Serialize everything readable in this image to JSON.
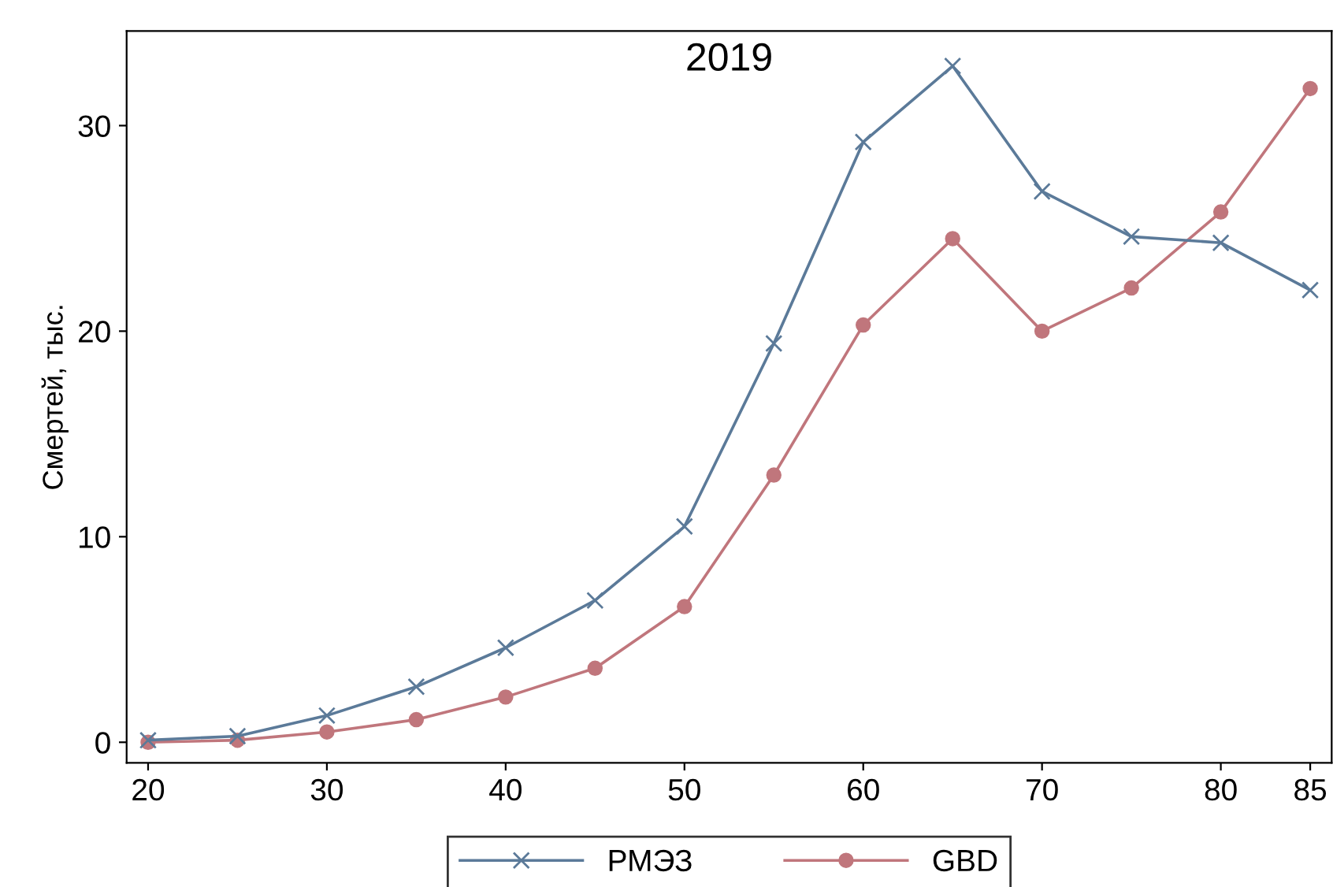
{
  "chart_data": {
    "type": "line",
    "title": "2019",
    "ylabel": "Смертей, тыс.",
    "x": [
      20,
      25,
      30,
      35,
      40,
      45,
      50,
      55,
      60,
      65,
      70,
      75,
      80,
      85
    ],
    "series": [
      {
        "name": "РМЭЗ",
        "color": "#5b7a99",
        "marker": "cross",
        "values": [
          0.1,
          0.3,
          1.3,
          2.7,
          4.6,
          6.9,
          10.5,
          19.4,
          29.2,
          32.9,
          26.8,
          24.6,
          24.3,
          22.0
        ]
      },
      {
        "name": "GBD",
        "color": "#c0767c",
        "marker": "circle",
        "values": [
          0.0,
          0.1,
          0.5,
          1.1,
          2.2,
          3.6,
          6.6,
          13.0,
          20.3,
          24.5,
          20.0,
          22.1,
          25.8,
          31.8
        ]
      }
    ],
    "xlim": [
      18.8,
      86.2
    ],
    "ylim": [
      -1,
      34.6
    ],
    "xticks": [
      20,
      30,
      40,
      50,
      60,
      70,
      80,
      85
    ],
    "yticks": [
      0,
      10,
      20,
      30
    ],
    "grid": false,
    "legend": "bottom",
    "line_style": "solid"
  }
}
